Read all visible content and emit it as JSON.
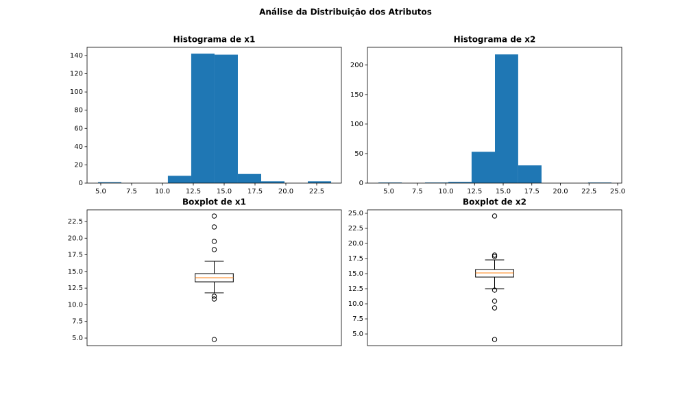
{
  "title": "Análise da Distribuição dos Atributos",
  "chart_data": [
    {
      "type": "histogram",
      "title": "Histograma de x1",
      "color": "#1f77b4",
      "bins": [
        4.78,
        6.67,
        8.56,
        10.44,
        12.33,
        14.22,
        16.11,
        18.0,
        19.89,
        21.78,
        23.67
      ],
      "values": [
        1,
        0,
        0,
        8,
        142,
        141,
        10,
        2,
        0,
        2
      ],
      "xlim": [
        3.89,
        24.5
      ],
      "xticks": [
        {
          "value": 5,
          "label": "5.0"
        },
        {
          "value": 7.5,
          "label": "7.5"
        },
        {
          "value": 10,
          "label": "10.0"
        },
        {
          "value": 12.5,
          "label": "12.5"
        },
        {
          "value": 15,
          "label": "15.0"
        },
        {
          "value": 17.5,
          "label": "17.5"
        },
        {
          "value": 20,
          "label": "20.0"
        },
        {
          "value": 22.5,
          "label": "22.5"
        }
      ],
      "ylim": [
        0,
        149
      ],
      "yticks": [
        0,
        20,
        40,
        60,
        80,
        100,
        120,
        140
      ]
    },
    {
      "type": "histogram",
      "title": "Histograma de x2",
      "color": "#1f77b4",
      "bins": [
        4.1,
        6.14,
        8.17,
        10.21,
        12.24,
        14.28,
        16.31,
        18.35,
        20.39,
        22.42,
        24.46
      ],
      "values": [
        1,
        0,
        1,
        2,
        53,
        218,
        30,
        0,
        0,
        1
      ],
      "xlim": [
        3.14,
        25.36
      ],
      "xticks": [
        {
          "value": 5,
          "label": "5.0"
        },
        {
          "value": 7.5,
          "label": "7.5"
        },
        {
          "value": 10,
          "label": "10.0"
        },
        {
          "value": 12.5,
          "label": "12.5"
        },
        {
          "value": 15,
          "label": "15.0"
        },
        {
          "value": 17.5,
          "label": "17.5"
        },
        {
          "value": 20,
          "label": "20.0"
        },
        {
          "value": 22.5,
          "label": "22.5"
        },
        {
          "value": 25,
          "label": "25.0"
        }
      ],
      "ylim": [
        0,
        230
      ],
      "yticks": [
        0,
        50,
        100,
        150,
        200
      ]
    },
    {
      "type": "box",
      "title": "Boxplot de x1",
      "median_color": "#ff7f0e",
      "q1": 13.44,
      "median": 14.06,
      "q3": 14.68,
      "whisker_low": 11.79,
      "whisker_high": 16.53,
      "outliers": [
        23.32,
        21.68,
        19.51,
        18.28,
        11.28,
        10.87,
        4.79
      ],
      "ylim": [
        3.87,
        24.25
      ],
      "yticks": [
        {
          "value": 5,
          "label": "5.0"
        },
        {
          "value": 7.5,
          "label": "7.5"
        },
        {
          "value": 10,
          "label": "10.0"
        },
        {
          "value": 12.5,
          "label": "12.5"
        },
        {
          "value": 15,
          "label": "15.0"
        },
        {
          "value": 17.5,
          "label": "17.5"
        },
        {
          "value": 20,
          "label": "20.0"
        },
        {
          "value": 22.5,
          "label": "22.5"
        }
      ]
    },
    {
      "type": "box",
      "title": "Boxplot de x2",
      "median_color": "#ff7f0e",
      "q1": 14.43,
      "median": 15.11,
      "q3": 15.68,
      "whisker_low": 12.5,
      "whisker_high": 17.27,
      "outliers": [
        24.55,
        18.07,
        17.84,
        12.27,
        10.45,
        9.32,
        4.09
      ],
      "ylim": [
        3.07,
        25.57
      ],
      "yticks": [
        {
          "value": 5,
          "label": "5.0"
        },
        {
          "value": 7.5,
          "label": "7.5"
        },
        {
          "value": 10,
          "label": "10.0"
        },
        {
          "value": 12.5,
          "label": "12.5"
        },
        {
          "value": 15,
          "label": "15.0"
        },
        {
          "value": 17.5,
          "label": "17.5"
        },
        {
          "value": 20,
          "label": "20.0"
        },
        {
          "value": 22.5,
          "label": "22.5"
        },
        {
          "value": 25,
          "label": "25.0"
        }
      ]
    }
  ]
}
